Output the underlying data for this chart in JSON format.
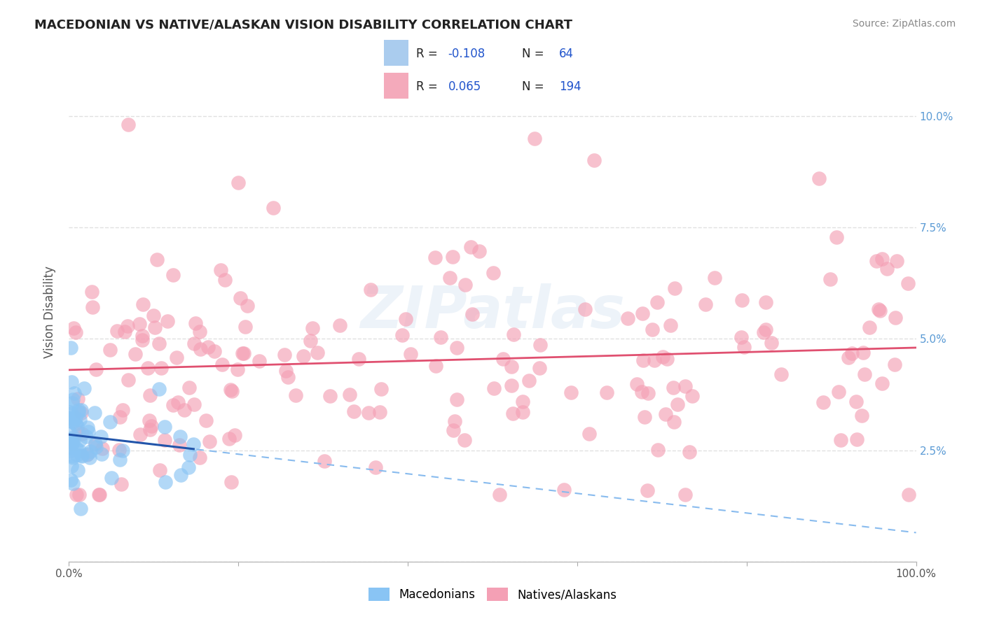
{
  "title": "MACEDONIAN VS NATIVE/ALASKAN VISION DISABILITY CORRELATION CHART",
  "source": "Source: ZipAtlas.com",
  "ylabel": "Vision Disability",
  "xlim": [
    0,
    100
  ],
  "ylim": [
    0,
    11.2
  ],
  "ytick_vals": [
    0,
    2.5,
    5.0,
    7.5,
    10.0
  ],
  "macedonian_color": "#89c4f4",
  "native_color": "#f4a0b5",
  "macedonian_line_color": "#2255aa",
  "macedonian_dash_color": "#88bbee",
  "native_line_color": "#e05070",
  "macedonian_R": -0.108,
  "macedonian_N": 64,
  "native_R": 0.065,
  "native_N": 194,
  "legend_macedonian_label": "Macedonians",
  "legend_native_label": "Natives/Alaskans",
  "watermark_text": "ZIPatlas",
  "background_color": "#ffffff",
  "grid_color": "#dddddd",
  "right_axis_color": "#5b9bd5",
  "title_color": "#222222",
  "source_color": "#888888",
  "ylabel_color": "#555555",
  "legend_box_color": "#aaccee",
  "legend_box_pink": "#f4a0b5",
  "legend_text_color": "#222222",
  "legend_R_color": "#2255cc"
}
